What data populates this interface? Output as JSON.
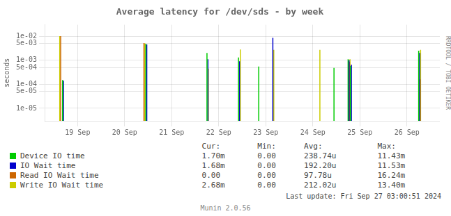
{
  "chart_data": {
    "type": "spike",
    "title": "Average latency for /dev/sds - by week",
    "y_label": "seconds",
    "log": "y",
    "grid": true,
    "legend": "bottom",
    "xlim": [
      0.3,
      8.7
    ],
    "xticks": [
      {
        "value": 1,
        "label": "19 Sep"
      },
      {
        "value": 2,
        "label": "20 Sep"
      },
      {
        "value": 3,
        "label": "21 Sep"
      },
      {
        "value": 4,
        "label": "22 Sep"
      },
      {
        "value": 5,
        "label": "23 Sep"
      },
      {
        "value": 6,
        "label": "24 Sep"
      },
      {
        "value": 7,
        "label": "25 Sep"
      },
      {
        "value": 8,
        "label": "26 Sep"
      }
    ],
    "ylim": [
      3e-06,
      0.03
    ],
    "yticks": [
      {
        "value": 1e-05,
        "label": "1e-05"
      },
      {
        "value": 5e-05,
        "label": "5e-05"
      },
      {
        "value": 0.0001,
        "label": "1e-04"
      },
      {
        "value": 0.0005,
        "label": "5e-04"
      },
      {
        "value": 0.001,
        "label": "1e-03"
      },
      {
        "value": 0.005,
        "label": "5e-03"
      },
      {
        "value": 0.01,
        "label": "1e-02"
      }
    ],
    "stats_header": [
      "Cur:",
      "Min:",
      "Avg:",
      "Max:"
    ],
    "series": [
      {
        "name": "Device IO time",
        "color": "#00cc00",
        "x": [
          0.68,
          2.45,
          3.75,
          4.42,
          4.85,
          6.45,
          6.75,
          6.8,
          8.25
        ],
        "values": [
          0.00015,
          0.0048,
          0.002,
          0.0013,
          0.00055,
          0.00048,
          0.0011,
          0.00058,
          0.0025
        ],
        "stats": [
          "1.70m",
          "0.00",
          "238.74u",
          "11.43m"
        ]
      },
      {
        "name": "IO Wait time",
        "color": "#0000cc",
        "x": [
          0.7,
          2.47,
          3.77,
          4.44,
          5.15,
          6.77,
          6.82,
          8.27
        ],
        "values": [
          0.00014,
          0.0045,
          0.0011,
          0.0009,
          0.0085,
          0.001,
          0.00065,
          0.002
        ],
        "stats": [
          "1.68m",
          "0.00",
          "192.20u",
          "11.53m"
        ]
      },
      {
        "name": "Read IO Wait time",
        "color": "#cc6600",
        "x": [
          0.64,
          2.41,
          6.78,
          8.28
        ],
        "values": [
          0.01,
          0.0052,
          0.00085,
          0.00016
        ],
        "stats": [
          "0.00",
          "0.00",
          "97.78u",
          "16.24m"
        ]
      },
      {
        "name": "Write IO Wait time",
        "color": "#cccc00",
        "x": [
          0.62,
          2.43,
          3.78,
          4.46,
          5.17,
          6.15,
          6.79,
          8.29
        ],
        "values": [
          0.01,
          0.005,
          0.00045,
          0.0028,
          0.0027,
          0.0027,
          0.0011,
          0.0027
        ],
        "stats": [
          "2.68m",
          "0.00",
          "212.02u",
          "13.40m"
        ]
      }
    ],
    "annotations": [
      "Last update: Fri Sep 27 03:00:51 2024",
      "Munin 2.0.56",
      "RRDTOOL / TOBI OETIKER"
    ]
  }
}
